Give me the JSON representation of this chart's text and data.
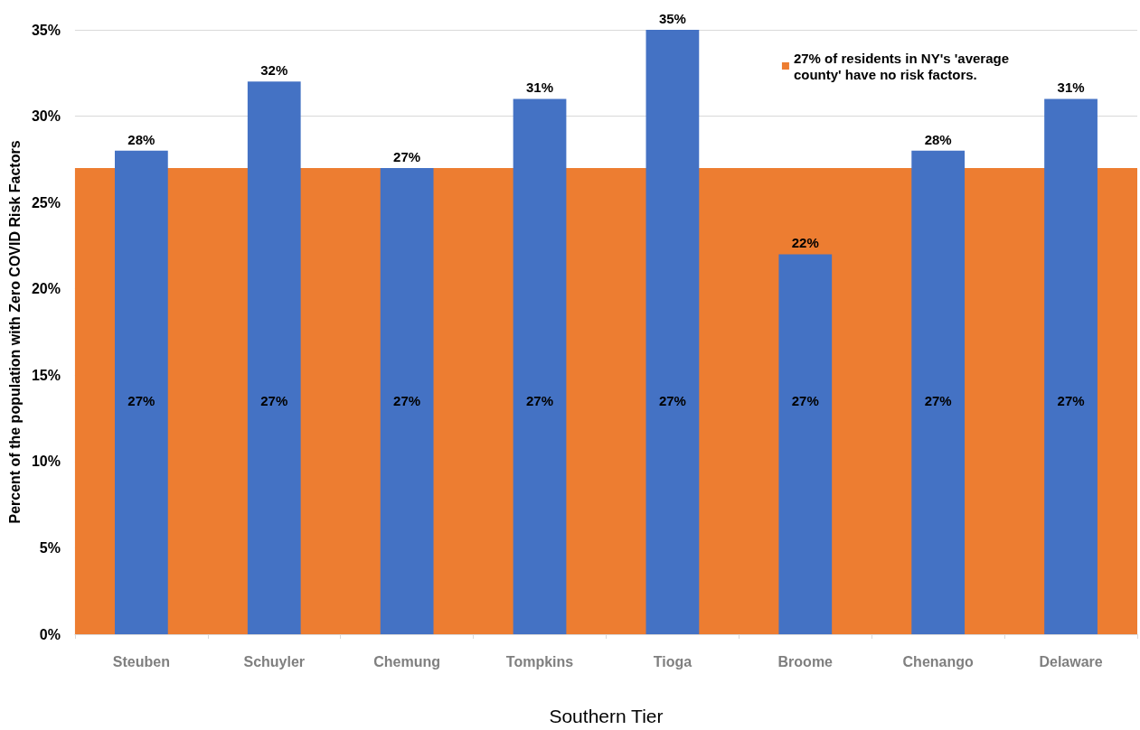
{
  "chart_data": {
    "type": "bar",
    "xlabel": "Southern Tier",
    "ylabel": "Percent of the population with Zero COVID Risk Factors",
    "categories": [
      "Steuben",
      "Schuyler",
      "Chemung",
      "Tompkins",
      "Tioga",
      "Broome",
      "Chenango",
      "Delaware"
    ],
    "series": [
      {
        "color": "#4472c4",
        "values": [
          28,
          32,
          27,
          31,
          35,
          22,
          28,
          31
        ],
        "value_labels": [
          "28%",
          "32%",
          "27%",
          "31%",
          "35%",
          "22%",
          "28%",
          "31%"
        ]
      }
    ],
    "bands": [
      {
        "axis": "y",
        "from": 0,
        "to": 27,
        "label": "27% of residents in NY's 'average county' have no risk factors.",
        "color": "#ed7d31"
      }
    ],
    "annotations": [
      "27%",
      "27%",
      "27%",
      "27%",
      "27%",
      "27%",
      "27%",
      "27%"
    ],
    "ylim": [
      0,
      35
    ],
    "yticks": [
      {
        "value": 0,
        "label": "0%"
      },
      {
        "value": 5,
        "label": "5%"
      },
      {
        "value": 10,
        "label": "10%"
      },
      {
        "value": 15,
        "label": "15%"
      },
      {
        "value": 20,
        "label": "20%"
      },
      {
        "value": 25,
        "label": "25%"
      },
      {
        "value": 30,
        "label": "30%"
      },
      {
        "value": 35,
        "label": "35%"
      }
    ],
    "grid": "y",
    "legend": "top right"
  }
}
